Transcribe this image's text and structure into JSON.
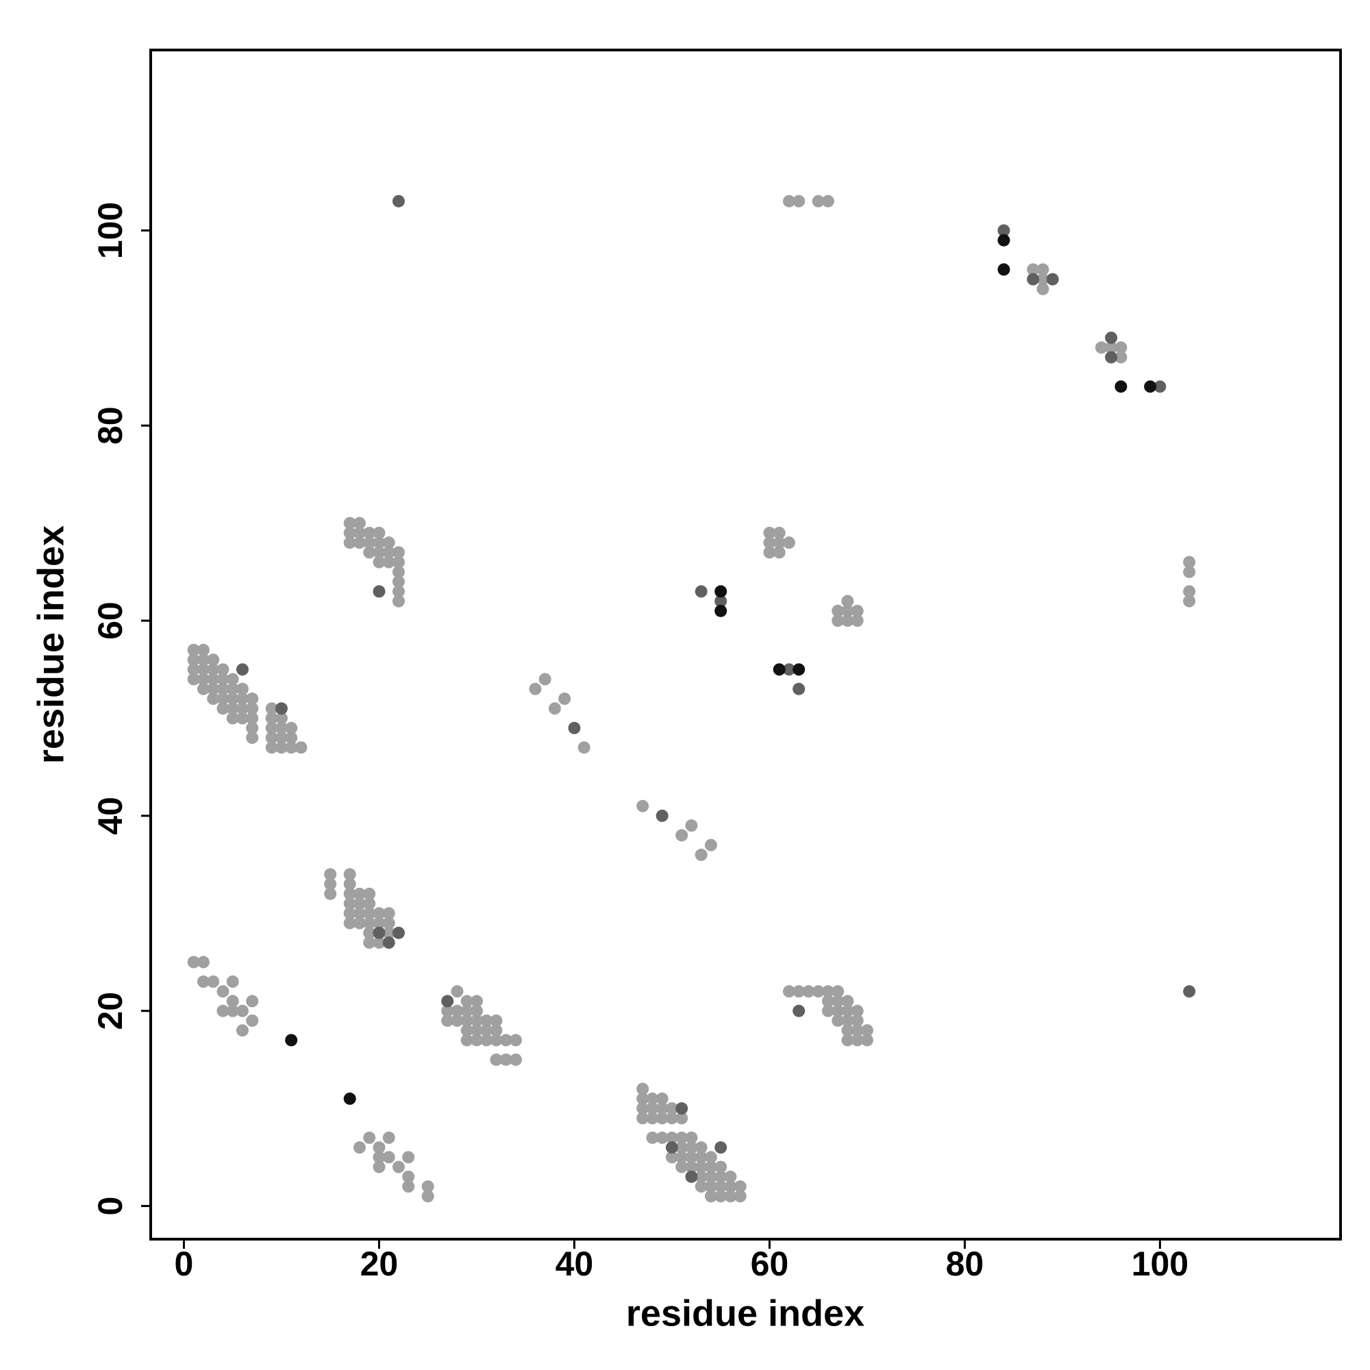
{
  "chart_data": {
    "type": "scatter",
    "x_label": "residue index",
    "y_label": "residue index",
    "xlim": [
      -3.4,
      118.5
    ],
    "ylim": [
      -3.4,
      118.5
    ],
    "xticks": [
      0,
      20,
      40,
      60,
      80,
      100
    ],
    "yticks": [
      0,
      20,
      40,
      60,
      80,
      100
    ],
    "series": [
      {
        "color": "#a0a0a0",
        "x": [
          62,
          63,
          65,
          66,
          87,
          88,
          88,
          88,
          94,
          95,
          96,
          96,
          17,
          18,
          17,
          18,
          19,
          20,
          17,
          18,
          19,
          20,
          21,
          19,
          20,
          21,
          22,
          20,
          21,
          22,
          22,
          22,
          22,
          22,
          60,
          61,
          60,
          61,
          62,
          60,
          61,
          103,
          103,
          103,
          103,
          67,
          68,
          69,
          67,
          68,
          69,
          68,
          1,
          2,
          1,
          2,
          3,
          1,
          2,
          3,
          4,
          1,
          2,
          3,
          4,
          5,
          2,
          3,
          4,
          5,
          6,
          3,
          4,
          5,
          6,
          7,
          4,
          5,
          6,
          7,
          5,
          6,
          7,
          7,
          7,
          9,
          9,
          10,
          9,
          10,
          11,
          9,
          10,
          11,
          9,
          10,
          11,
          12,
          36,
          37,
          38,
          39,
          41,
          47,
          51,
          52,
          53,
          54,
          15,
          15,
          15,
          17,
          17,
          17,
          18,
          19,
          17,
          18,
          19,
          20,
          21,
          17,
          18,
          19,
          17,
          18,
          19,
          20,
          21,
          19,
          21,
          19,
          20,
          1,
          2,
          2,
          3,
          4,
          5,
          5,
          4,
          5,
          6,
          7,
          7,
          6,
          28,
          29,
          30,
          27,
          28,
          29,
          30,
          27,
          28,
          29,
          30,
          31,
          32,
          29,
          30,
          31,
          32,
          29,
          30,
          31,
          32,
          33,
          34,
          32,
          33,
          34,
          62,
          63,
          64,
          65,
          66,
          67,
          66,
          67,
          68,
          66,
          67,
          68,
          69,
          67,
          68,
          69,
          68,
          69,
          70,
          68,
          69,
          70,
          18,
          19,
          21,
          20,
          20,
          21,
          20,
          22,
          23,
          23,
          23,
          25,
          25,
          47,
          47,
          48,
          49,
          47,
          48,
          49,
          50,
          47,
          48,
          49,
          50,
          51,
          48,
          49,
          50,
          51,
          52,
          51,
          52,
          53,
          50,
          51,
          52,
          53,
          54,
          51,
          52,
          53,
          54,
          55,
          53,
          54,
          55,
          56,
          53,
          54,
          55,
          56,
          57,
          54,
          55,
          56,
          57
        ],
        "values": [
          103,
          103,
          103,
          103,
          96,
          96,
          95,
          94,
          88,
          88,
          88,
          87,
          70,
          70,
          69,
          69,
          69,
          69,
          68,
          68,
          68,
          68,
          68,
          67,
          67,
          67,
          67,
          66,
          66,
          66,
          65,
          64,
          63,
          62,
          69,
          69,
          68,
          68,
          68,
          67,
          67,
          66,
          65,
          63,
          62,
          61,
          62,
          61,
          60,
          60,
          60,
          61,
          57,
          57,
          56,
          56,
          56,
          55,
          55,
          55,
          55,
          54,
          54,
          54,
          54,
          54,
          53,
          53,
          53,
          53,
          53,
          52,
          52,
          52,
          52,
          52,
          51,
          51,
          51,
          51,
          50,
          50,
          50,
          49,
          48,
          51,
          50,
          50,
          49,
          49,
          49,
          48,
          48,
          48,
          47,
          47,
          47,
          47,
          53,
          54,
          51,
          52,
          47,
          41,
          38,
          39,
          36,
          37,
          34,
          33,
          32,
          34,
          33,
          32,
          32,
          32,
          31,
          31,
          31,
          30,
          30,
          30,
          30,
          30,
          29,
          29,
          29,
          29,
          29,
          28,
          28,
          27,
          27,
          25,
          25,
          23,
          23,
          22,
          23,
          21,
          20,
          20,
          20,
          21,
          19,
          18,
          22,
          21,
          21,
          20,
          20,
          20,
          20,
          19,
          19,
          19,
          19,
          19,
          19,
          18,
          18,
          18,
          18,
          17,
          17,
          17,
          17,
          17,
          17,
          15,
          15,
          15,
          22,
          22,
          22,
          22,
          22,
          22,
          21,
          21,
          21,
          20,
          20,
          20,
          20,
          19,
          19,
          19,
          18,
          18,
          18,
          17,
          17,
          17,
          6,
          7,
          7,
          6,
          5,
          5,
          4,
          4,
          5,
          3,
          2,
          2,
          1,
          12,
          11,
          11,
          11,
          10,
          10,
          10,
          10,
          9,
          9,
          9,
          9,
          9,
          7,
          7,
          7,
          7,
          7,
          6,
          6,
          6,
          5,
          5,
          5,
          5,
          5,
          4,
          4,
          4,
          4,
          4,
          3,
          3,
          3,
          3,
          2,
          2,
          2,
          2,
          2,
          1,
          1,
          1,
          1
        ]
      },
      {
        "color": "#606060",
        "x": [
          22,
          84,
          87,
          89,
          95,
          95,
          100,
          20,
          53,
          55,
          62,
          63,
          6,
          10,
          40,
          49,
          20,
          21,
          22,
          27,
          63,
          103,
          51,
          55,
          50,
          52
        ],
        "values": [
          103,
          100,
          95,
          95,
          89,
          87,
          84,
          63,
          63,
          62,
          55,
          53,
          55,
          51,
          49,
          40,
          28,
          27,
          28,
          21,
          20,
          22,
          10,
          6,
          6,
          3
        ]
      },
      {
        "color": "#111111",
        "x": [
          84,
          84,
          96,
          99,
          55,
          55,
          61,
          63,
          11,
          17
        ],
        "values": [
          99,
          96,
          84,
          84,
          63,
          61,
          55,
          55,
          17,
          11
        ]
      }
    ]
  }
}
